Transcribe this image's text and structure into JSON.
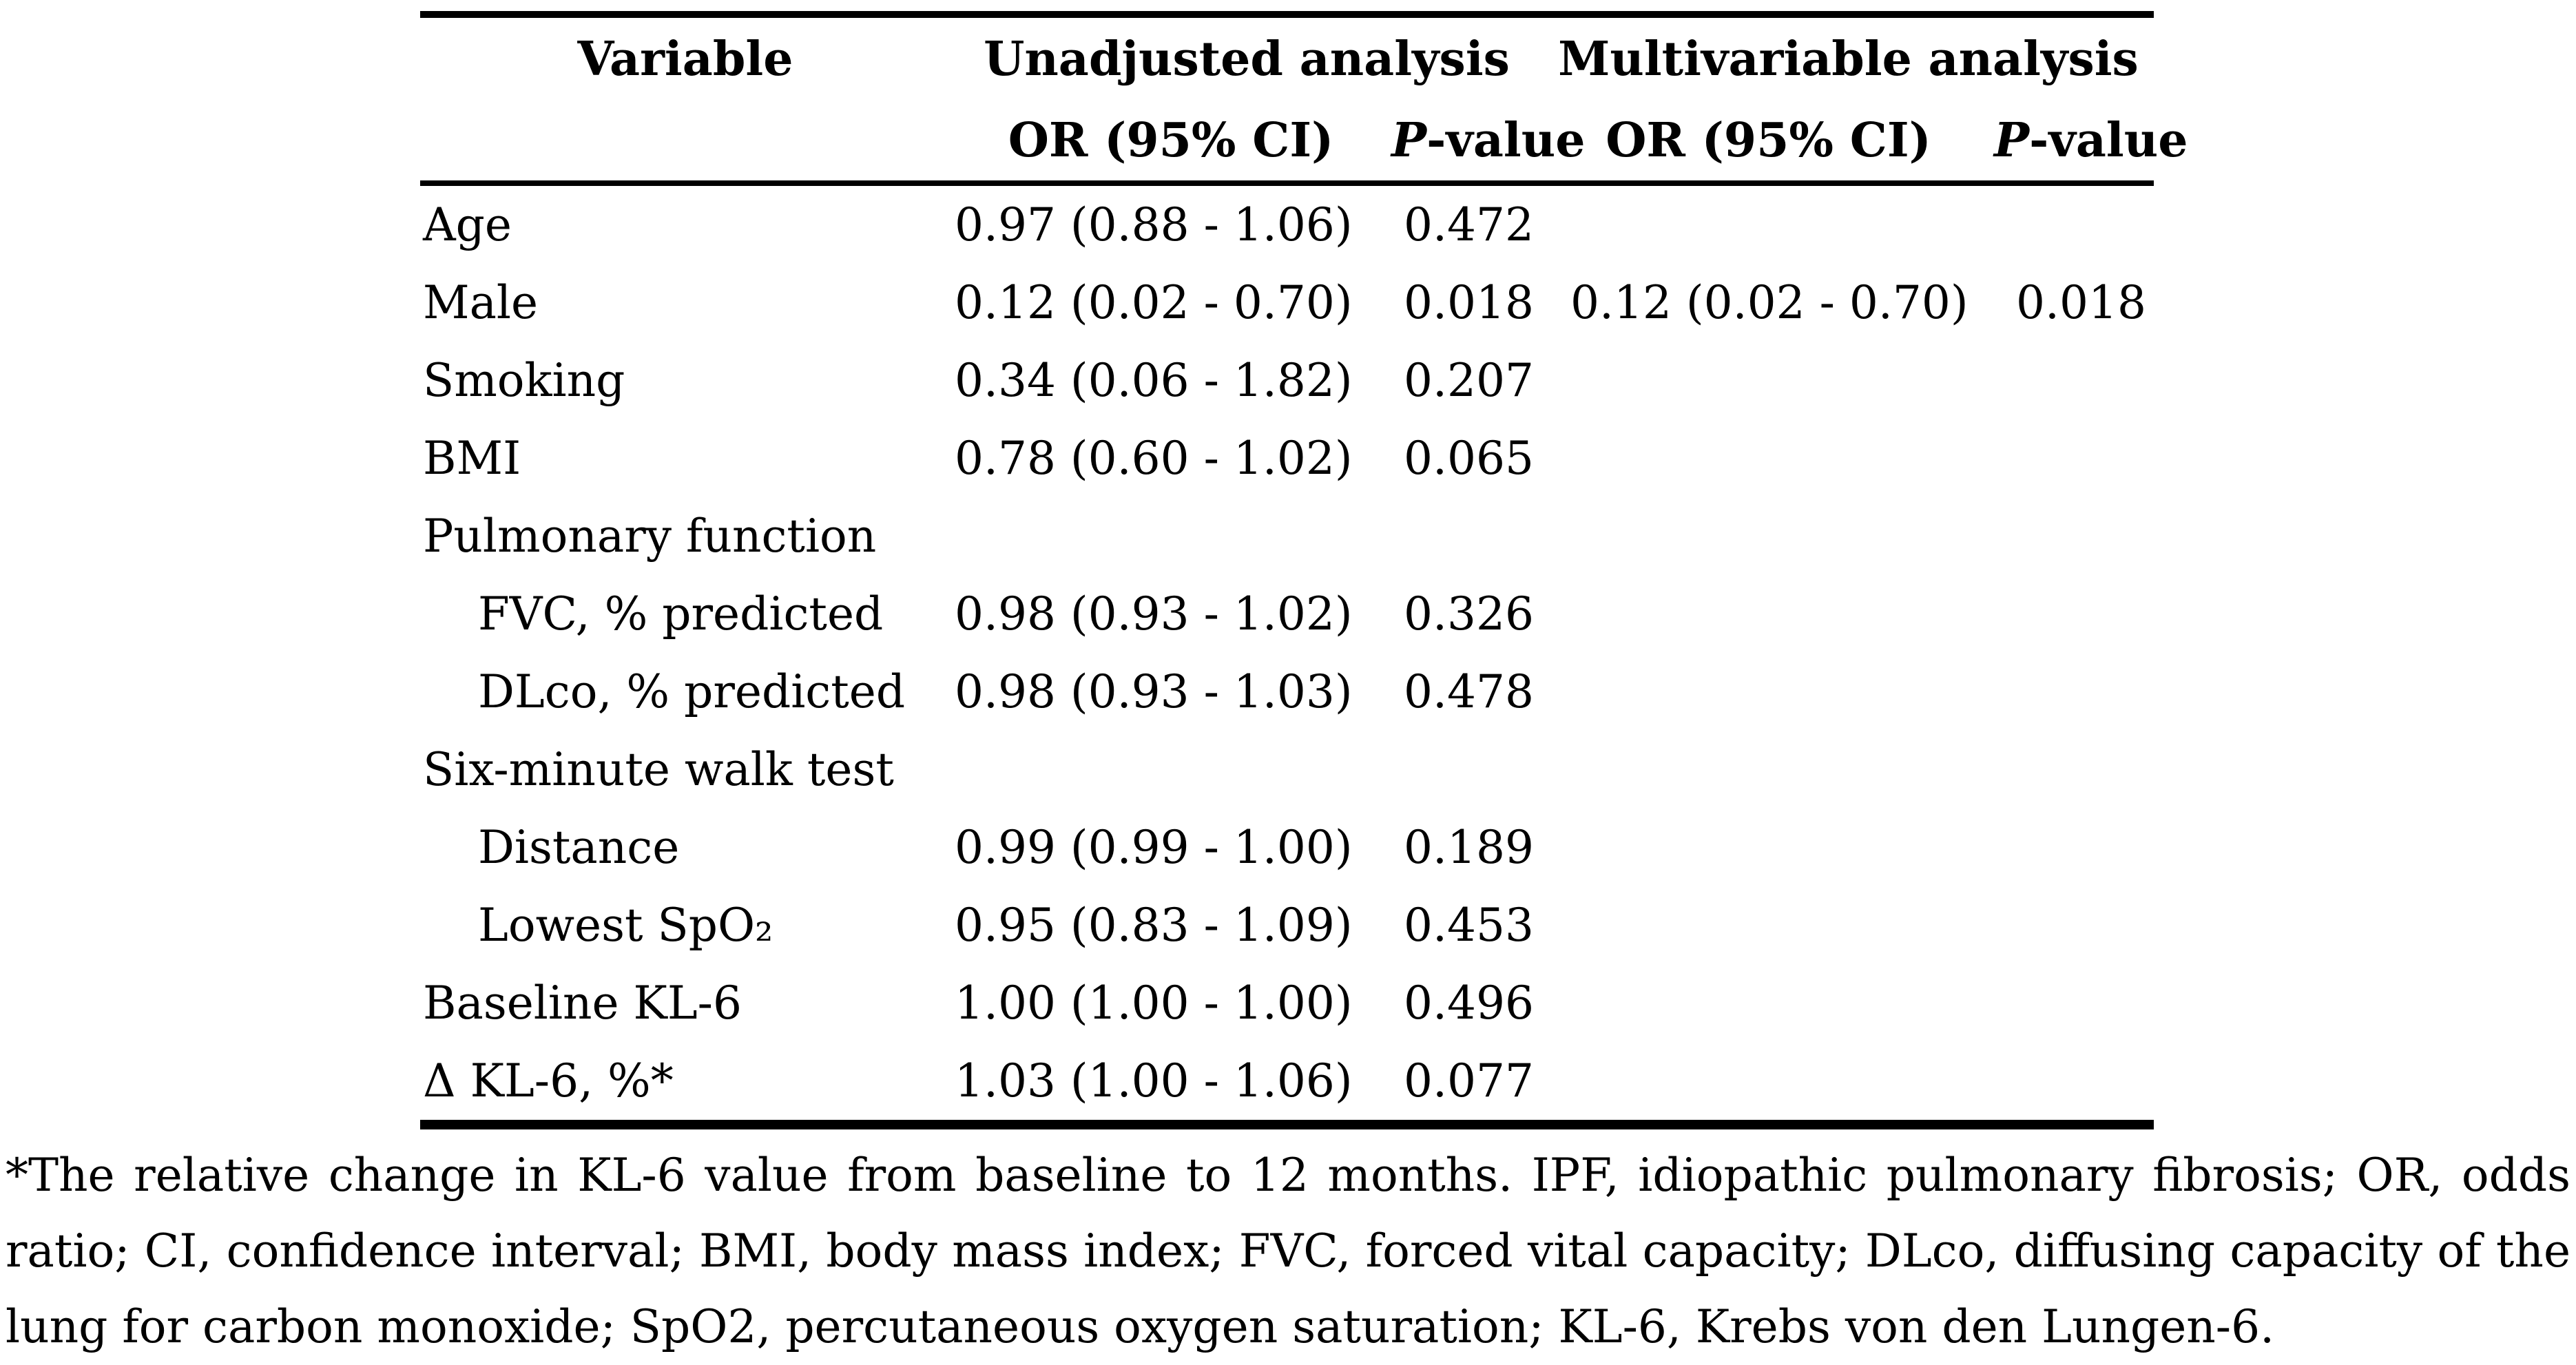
{
  "table": {
    "columns": {
      "variable": "Variable",
      "group1": "Unadjusted analysis",
      "group2": "Multivariable analysis",
      "or_header": "OR (95% CI)",
      "p_header": "P-value"
    },
    "rows": [
      {
        "label": "Age",
        "u_or": "0.97 (0.88 - 1.06)",
        "u_p": "0.472",
        "m_or": "",
        "m_p": ""
      },
      {
        "label": "Male",
        "u_or": "0.12 (0.02 - 0.70)",
        "u_p": "0.018",
        "m_or": "0.12 (0.02 - 0.70)",
        "m_p": "0.018"
      },
      {
        "label": "Smoking",
        "u_or": "0.34 (0.06 - 1.82)",
        "u_p": "0.207",
        "m_or": "",
        "m_p": ""
      },
      {
        "label": "BMI",
        "u_or": "0.78 (0.60 - 1.02)",
        "u_p": "0.065",
        "m_or": "",
        "m_p": ""
      },
      {
        "label": "Pulmonary function",
        "u_or": "",
        "u_p": "",
        "m_or": "",
        "m_p": ""
      },
      {
        "label": "FVC, % predicted",
        "u_or": "0.98 (0.93 - 1.02)",
        "u_p": "0.326",
        "m_or": "",
        "m_p": ""
      },
      {
        "label": "DLco, % predicted",
        "u_or": "0.98 (0.93 - 1.03)",
        "u_p": "0.478",
        "m_or": "",
        "m_p": ""
      },
      {
        "label": "Six-minute walk test",
        "u_or": "",
        "u_p": "",
        "m_or": "",
        "m_p": ""
      },
      {
        "label": "Distance",
        "u_or": "0.99 (0.99 - 1.00)",
        "u_p": "0.189",
        "m_or": "",
        "m_p": ""
      },
      {
        "label": "Lowest SpO₂",
        "u_or": "0.95 (0.83 - 1.09)",
        "u_p": "0.453",
        "m_or": "",
        "m_p": ""
      },
      {
        "label": "Baseline KL-6",
        "u_or": "1.00 (1.00 - 1.00)",
        "u_p": "0.496",
        "m_or": "",
        "m_p": ""
      },
      {
        "label": "Δ KL-6, %*",
        "u_or": "1.03 (1.00 - 1.06)",
        "u_p": "0.077",
        "m_or": "",
        "m_p": ""
      }
    ]
  },
  "footnote": {
    "lines": [
      "*The relative change in KL-6 value from baseline to 12 months. IPF, idiopathic pulmonary fibrosis; OR, odds",
      "ratio; CI, confidence interval; BMI, body mass index; FVC, forced vital capacity; DLco, diffusing capacity of the",
      "lung for carbon monoxide; SpO2, percutaneous oxygen saturation; KL-6, Krebs von den Lungen-6."
    ]
  },
  "colors": {
    "text": "#000000",
    "background": "#ffffff",
    "rule": "#000000"
  }
}
